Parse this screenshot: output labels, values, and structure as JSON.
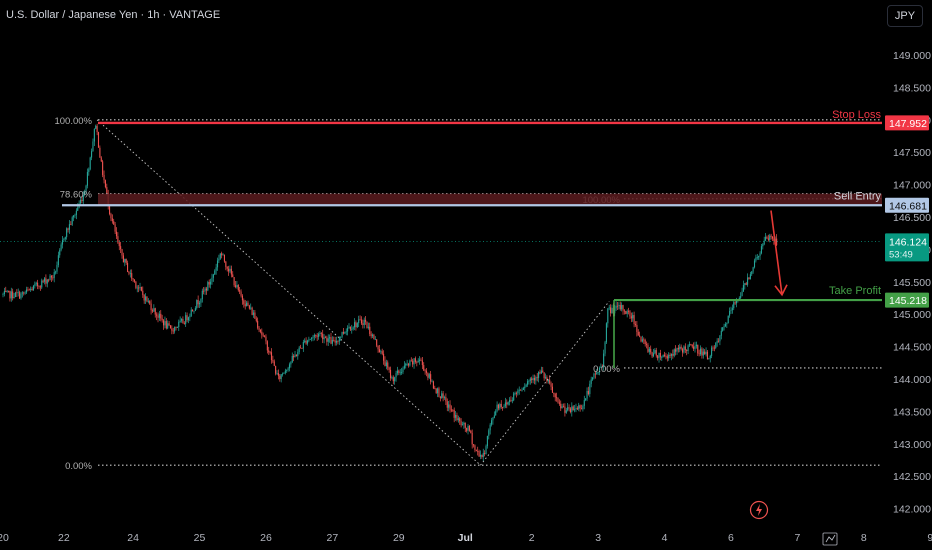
{
  "header": {
    "title": "U.S. Dollar / Japanese Yen · 1h · VANTAGE",
    "currency_button": "JPY"
  },
  "colors": {
    "background": "#000000",
    "up": "#26a69a",
    "down": "#ef5350",
    "stop_loss": "#f23645",
    "sell_entry": "#b2c8e6",
    "take_profit": "#43a047",
    "current_price": "#089981",
    "fib": "#c7c7c7",
    "text": "#d1d4dc",
    "axis_text": "#b2b5be"
  },
  "chart_data": {
    "type": "candlestick",
    "symbol": "USDJPY",
    "interval": "1h",
    "ylim": [
      141.75,
      149.3
    ],
    "y_ticks": [
      "149.000",
      "148.500",
      "148.000",
      "147.500",
      "147.000",
      "146.500",
      "146.000",
      "145.500",
      "145.000",
      "144.500",
      "144.000",
      "143.500",
      "143.000",
      "142.500",
      "142.000"
    ],
    "x_ticks": [
      "20",
      "22",
      "24",
      "25",
      "26",
      "27",
      "29",
      "Jul",
      "2",
      "3",
      "4",
      "6",
      "7",
      "8",
      "9"
    ],
    "x_tick_index": [
      0,
      44,
      94,
      142,
      190,
      238,
      286,
      334,
      382,
      430,
      478,
      526,
      574,
      622,
      670
    ],
    "price_path_anchors": [
      [
        0,
        145.3
      ],
      [
        15,
        145.3
      ],
      [
        30,
        145.5
      ],
      [
        38,
        145.6
      ],
      [
        45,
        146.2
      ],
      [
        52,
        146.5
      ],
      [
        60,
        146.9
      ],
      [
        68,
        147.95
      ],
      [
        72,
        147.3
      ],
      [
        78,
        146.6
      ],
      [
        85,
        146.0
      ],
      [
        93,
        145.6
      ],
      [
        102,
        145.3
      ],
      [
        112,
        145.0
      ],
      [
        122,
        144.75
      ],
      [
        132,
        144.9
      ],
      [
        142,
        145.2
      ],
      [
        152,
        145.55
      ],
      [
        158,
        145.95
      ],
      [
        164,
        145.7
      ],
      [
        172,
        145.3
      ],
      [
        182,
        145.0
      ],
      [
        192,
        144.5
      ],
      [
        200,
        144.0
      ],
      [
        210,
        144.3
      ],
      [
        220,
        144.6
      ],
      [
        230,
        144.7
      ],
      [
        240,
        144.55
      ],
      [
        250,
        144.8
      ],
      [
        262,
        144.9
      ],
      [
        272,
        144.5
      ],
      [
        282,
        144.0
      ],
      [
        292,
        144.2
      ],
      [
        302,
        144.3
      ],
      [
        312,
        143.9
      ],
      [
        322,
        143.6
      ],
      [
        332,
        143.3
      ],
      [
        338,
        143.2
      ],
      [
        342,
        142.9
      ],
      [
        348,
        142.8
      ],
      [
        352,
        143.2
      ],
      [
        358,
        143.6
      ],
      [
        364,
        143.6
      ],
      [
        372,
        143.8
      ],
      [
        382,
        144.0
      ],
      [
        390,
        144.1
      ],
      [
        396,
        143.9
      ],
      [
        402,
        143.6
      ],
      [
        410,
        143.5
      ],
      [
        420,
        143.6
      ],
      [
        428,
        144.05
      ],
      [
        434,
        144.2
      ],
      [
        438,
        145.05
      ],
      [
        448,
        145.1
      ],
      [
        456,
        144.95
      ],
      [
        462,
        144.6
      ],
      [
        470,
        144.4
      ],
      [
        480,
        144.35
      ],
      [
        490,
        144.45
      ],
      [
        500,
        144.5
      ],
      [
        510,
        144.35
      ],
      [
        516,
        144.5
      ],
      [
        522,
        144.8
      ],
      [
        528,
        145.1
      ],
      [
        536,
        145.4
      ],
      [
        544,
        145.8
      ],
      [
        552,
        146.15
      ],
      [
        556,
        146.2
      ],
      [
        559,
        146.124
      ]
    ],
    "candles_total": 560,
    "current_price": "146.124",
    "countdown": "53:49",
    "levels": [
      {
        "name": "Stop Loss",
        "value": 147.952,
        "label": "147.952"
      },
      {
        "name": "Sell Entry",
        "value": 146.681,
        "label": "146.681"
      },
      {
        "name": "Take Profit",
        "value": 145.218,
        "label": "145.218"
      }
    ],
    "fib_large": {
      "high": 148.0,
      "low": 142.67,
      "levels": [
        {
          "label": "100.00%",
          "value": 148.0
        },
        {
          "label": "78.60%",
          "value": 146.86
        },
        {
          "label": "0.00%",
          "value": 142.67
        }
      ]
    },
    "fib_small": {
      "levels": [
        {
          "label": "100.00%",
          "value": 146.78
        },
        {
          "label": "0.00%",
          "value": 144.17
        }
      ]
    },
    "forecast_arrow": {
      "from": 146.6,
      "to": 145.3
    },
    "trend_lines": [
      {
        "from_idx": 68,
        "from_val": 148.0,
        "to_idx": 345,
        "to_val": 142.67
      },
      {
        "from_idx": 345,
        "from_val": 142.67,
        "to_idx": 438,
        "to_val": 145.2
      }
    ]
  }
}
